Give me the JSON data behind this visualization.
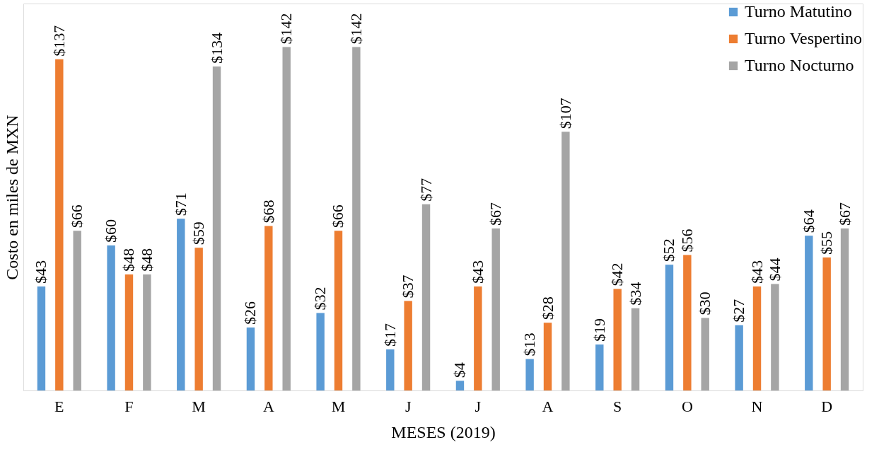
{
  "chart_data": {
    "type": "bar",
    "xlabel": "MESES (2019)",
    "ylabel": "Costo  en miles de MXN",
    "categories": [
      "E",
      "F",
      "M",
      "A",
      "M",
      "J",
      "J",
      "A",
      "S",
      "O",
      "N",
      "D"
    ],
    "series": [
      {
        "name": "Turno Matutino",
        "color": "#5b9bd5",
        "values": [
          43,
          60,
          71,
          26,
          32,
          17,
          4,
          13,
          19,
          52,
          27,
          64
        ],
        "value_labels": [
          "$43",
          "$60",
          "$71",
          "$26",
          "$32",
          "$17",
          "$4",
          "$13",
          "$19",
          "$52",
          "$27",
          "$64"
        ]
      },
      {
        "name": "Turno Vespertino",
        "color": "#ed7d31",
        "values": [
          137,
          48,
          59,
          68,
          66,
          37,
          43,
          28,
          42,
          56,
          43,
          55
        ],
        "value_labels": [
          "$137",
          "$48",
          "$59",
          "$68",
          "$66",
          "$37",
          "$43",
          "$28",
          "$42",
          "$56",
          "$43",
          "$55"
        ]
      },
      {
        "name": "Turno Nocturno",
        "color": "#a5a5a5",
        "values": [
          66,
          48,
          134,
          142,
          142,
          77,
          67,
          107,
          34,
          30,
          44,
          67
        ],
        "value_labels": [
          "$66",
          "$48",
          "$134",
          "$142",
          "$142",
          "$77",
          "$67",
          "$107",
          "$34",
          "$30",
          "$44",
          "$67"
        ]
      }
    ],
    "legend": "top right"
  }
}
